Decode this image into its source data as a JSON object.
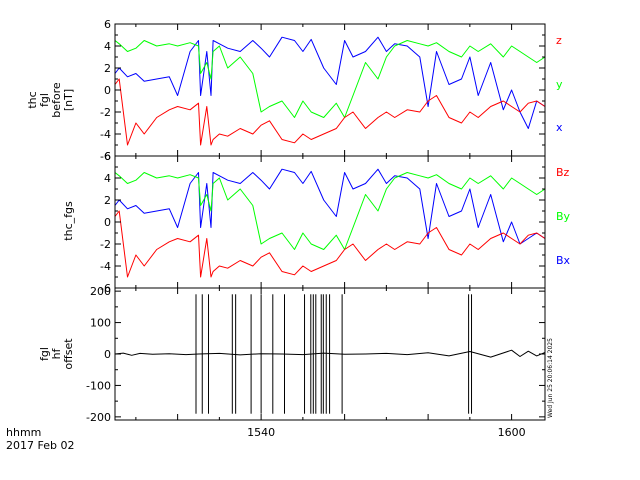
{
  "footer": {
    "time_unit": "hhmm",
    "date": "2017 Feb 02"
  },
  "stamp": "Wed Jun 25 20:06:14 2025",
  "chart_data": [
    {
      "type": "line",
      "panel": "top",
      "ylabel_lines": [
        "thc",
        "fgl",
        "before",
        "[nT]"
      ],
      "ylim": [
        -6,
        6
      ],
      "yticks": [
        -6,
        -4,
        -2,
        0,
        2,
        4,
        6
      ],
      "xlim": [
        1505,
        1608
      ],
      "series": [
        {
          "name": "x",
          "color": "#0000ff",
          "x": [
            1505,
            1506,
            1508,
            1510,
            1512,
            1515,
            1518,
            1520,
            1523,
            1525,
            1525.5,
            1527,
            1528,
            1528.5,
            1530,
            1532,
            1535,
            1538,
            1540,
            1542,
            1545,
            1548,
            1550,
            1552,
            1555,
            1558,
            1560,
            1562,
            1565,
            1568,
            1570,
            1572,
            1575,
            1578,
            1580,
            1582,
            1585,
            1588,
            1590,
            1592,
            1595,
            1598,
            1600,
            1602,
            1604,
            1606,
            1608
          ],
          "values": [
            1.5,
            2.0,
            1.2,
            1.5,
            0.8,
            1.0,
            1.2,
            -0.5,
            3.5,
            4.5,
            -0.5,
            3.5,
            -0.5,
            4.5,
            4.2,
            3.8,
            3.5,
            4.5,
            3.8,
            3.0,
            4.8,
            4.5,
            3.5,
            4.6,
            2.0,
            0.5,
            4.5,
            3.0,
            3.5,
            4.8,
            3.5,
            4.2,
            4.0,
            3.0,
            -1.5,
            3.5,
            0.5,
            1.0,
            3.0,
            -0.5,
            2.5,
            -1.8,
            0.0,
            -2.0,
            -3.5,
            -1.0,
            -1.5
          ]
        },
        {
          "name": "y",
          "color": "#00ff00",
          "x": [
            1505,
            1506,
            1508,
            1510,
            1512,
            1515,
            1518,
            1520,
            1523,
            1525,
            1525.5,
            1527,
            1528,
            1528.5,
            1530,
            1532,
            1535,
            1538,
            1540,
            1542,
            1545,
            1548,
            1550,
            1552,
            1555,
            1558,
            1560,
            1562,
            1565,
            1568,
            1570,
            1572,
            1575,
            1578,
            1580,
            1582,
            1585,
            1588,
            1590,
            1592,
            1595,
            1598,
            1600,
            1602,
            1604,
            1606,
            1608
          ],
          "values": [
            4.5,
            4.2,
            3.5,
            3.8,
            4.5,
            4.0,
            4.2,
            4.0,
            4.3,
            4.0,
            1.5,
            2.5,
            1.0,
            3.5,
            4.0,
            2.0,
            3.0,
            1.5,
            -2.0,
            -1.5,
            -1.0,
            -2.5,
            -1.0,
            -2.0,
            -2.5,
            -1.2,
            -2.5,
            -0.5,
            2.5,
            1.0,
            3.0,
            4.0,
            4.5,
            4.2,
            4.0,
            4.3,
            3.5,
            3.0,
            4.0,
            3.5,
            4.2,
            3.0,
            4.0,
            3.5,
            3.0,
            2.5,
            3.0
          ]
        },
        {
          "name": "z",
          "color": "#ff0000",
          "x": [
            1505,
            1506,
            1508,
            1510,
            1512,
            1515,
            1518,
            1520,
            1523,
            1525,
            1525.5,
            1527,
            1528,
            1528.5,
            1530,
            1532,
            1535,
            1538,
            1540,
            1542,
            1545,
            1548,
            1550,
            1552,
            1555,
            1558,
            1560,
            1562,
            1565,
            1568,
            1570,
            1572,
            1575,
            1578,
            1580,
            1582,
            1585,
            1588,
            1590,
            1592,
            1595,
            1598,
            1600,
            1602,
            1604,
            1606,
            1608
          ],
          "values": [
            0.5,
            1.0,
            -5.0,
            -3.0,
            -4.0,
            -2.5,
            -1.8,
            -1.5,
            -1.8,
            -1.2,
            -5.0,
            -1.5,
            -5.0,
            -4.5,
            -4.0,
            -4.2,
            -3.5,
            -4.0,
            -3.2,
            -2.8,
            -4.5,
            -4.8,
            -4.0,
            -4.5,
            -4.0,
            -3.5,
            -2.5,
            -2.0,
            -3.5,
            -2.5,
            -2.0,
            -2.5,
            -1.8,
            -2.0,
            -1.0,
            -0.5,
            -2.5,
            -3.0,
            -2.0,
            -2.5,
            -1.5,
            -1.0,
            -1.5,
            -2.0,
            -1.2,
            -1.0,
            -1.5
          ]
        }
      ]
    },
    {
      "type": "line",
      "panel": "middle",
      "ylabel_lines": [
        "thc_fgs"
      ],
      "ylim": [
        -6,
        6
      ],
      "yticks": [
        -6,
        -4,
        -2,
        0,
        2,
        4,
        6
      ],
      "xlim": [
        1505,
        1608
      ],
      "series": [
        {
          "name": "Bx",
          "color": "#0000ff",
          "x": [
            1505,
            1506,
            1508,
            1510,
            1512,
            1515,
            1518,
            1520,
            1523,
            1525,
            1525.5,
            1527,
            1528,
            1528.5,
            1530,
            1532,
            1535,
            1538,
            1540,
            1542,
            1545,
            1548,
            1550,
            1552,
            1555,
            1558,
            1560,
            1562,
            1565,
            1568,
            1570,
            1572,
            1575,
            1578,
            1580,
            1582,
            1585,
            1588,
            1590,
            1592,
            1595,
            1598,
            1600,
            1602,
            1604,
            1606,
            1608
          ],
          "values": [
            1.5,
            2.0,
            1.2,
            1.5,
            0.8,
            1.0,
            1.2,
            -0.5,
            3.5,
            4.5,
            -0.5,
            3.5,
            -0.5,
            4.5,
            4.2,
            3.8,
            3.5,
            4.5,
            3.8,
            3.0,
            4.8,
            4.5,
            3.5,
            4.6,
            2.0,
            0.5,
            4.5,
            3.0,
            3.5,
            4.8,
            3.5,
            4.2,
            4.0,
            3.0,
            -1.5,
            3.5,
            0.5,
            1.0,
            3.0,
            -0.5,
            2.5,
            -1.8,
            0.0,
            -2.0,
            -1.5,
            -1.0,
            -1.5
          ]
        },
        {
          "name": "By",
          "color": "#00ff00",
          "x": [
            1505,
            1506,
            1508,
            1510,
            1512,
            1515,
            1518,
            1520,
            1523,
            1525,
            1525.5,
            1527,
            1528,
            1528.5,
            1530,
            1532,
            1535,
            1538,
            1540,
            1542,
            1545,
            1548,
            1550,
            1552,
            1555,
            1558,
            1560,
            1562,
            1565,
            1568,
            1570,
            1572,
            1575,
            1578,
            1580,
            1582,
            1585,
            1588,
            1590,
            1592,
            1595,
            1598,
            1600,
            1602,
            1604,
            1606,
            1608
          ],
          "values": [
            4.5,
            4.2,
            3.5,
            3.8,
            4.5,
            4.0,
            4.2,
            4.0,
            4.3,
            4.0,
            1.5,
            2.5,
            1.0,
            3.5,
            4.0,
            2.0,
            3.0,
            1.5,
            -2.0,
            -1.5,
            -1.0,
            -2.5,
            -1.0,
            -2.0,
            -2.5,
            -1.2,
            -2.5,
            -0.5,
            2.5,
            1.0,
            3.0,
            4.0,
            4.5,
            4.2,
            4.0,
            4.3,
            3.5,
            3.0,
            4.0,
            3.5,
            4.2,
            3.0,
            4.0,
            3.5,
            3.0,
            2.5,
            3.0
          ]
        },
        {
          "name": "Bz",
          "color": "#ff0000",
          "x": [
            1505,
            1506,
            1508,
            1510,
            1512,
            1515,
            1518,
            1520,
            1523,
            1525,
            1525.5,
            1527,
            1528,
            1528.5,
            1530,
            1532,
            1535,
            1538,
            1540,
            1542,
            1545,
            1548,
            1550,
            1552,
            1555,
            1558,
            1560,
            1562,
            1565,
            1568,
            1570,
            1572,
            1575,
            1578,
            1580,
            1582,
            1585,
            1588,
            1590,
            1592,
            1595,
            1598,
            1600,
            1602,
            1604,
            1606,
            1608
          ],
          "values": [
            0.5,
            1.0,
            -5.0,
            -3.0,
            -4.0,
            -2.5,
            -1.8,
            -1.5,
            -1.8,
            -1.2,
            -5.0,
            -1.5,
            -5.0,
            -4.5,
            -4.0,
            -4.2,
            -3.5,
            -4.0,
            -3.2,
            -2.8,
            -4.5,
            -4.8,
            -4.0,
            -4.5,
            -4.0,
            -3.5,
            -2.5,
            -2.0,
            -3.5,
            -2.5,
            -2.0,
            -2.5,
            -1.8,
            -2.0,
            -1.0,
            -0.5,
            -2.5,
            -3.0,
            -2.0,
            -2.5,
            -1.5,
            -1.0,
            -1.5,
            -2.0,
            -1.2,
            -1.0,
            -1.5
          ]
        }
      ]
    },
    {
      "type": "line",
      "panel": "bottom",
      "ylabel_lines": [
        "fgl",
        "hf",
        "offset"
      ],
      "ylim": [
        -210,
        210
      ],
      "yticks": [
        -200,
        -100,
        0,
        100,
        200
      ],
      "xlim": [
        1505,
        1608
      ],
      "xticks": [
        1540,
        1600
      ],
      "xticklabels": [
        "1540",
        "1600"
      ],
      "series": [
        {
          "name": "",
          "color": "#000000",
          "x": [
            1505,
            1507,
            1509,
            1511,
            1514,
            1518,
            1522,
            1525,
            1530,
            1535,
            1540,
            1545,
            1550,
            1555,
            1560,
            1565,
            1570,
            1575,
            1580,
            1585,
            1590,
            1595,
            1600,
            1602,
            1604,
            1606,
            1608
          ],
          "values": [
            0,
            3,
            -4,
            2,
            -1,
            1,
            -2,
            0,
            2,
            -3,
            1,
            0,
            -2,
            3,
            -1,
            0,
            2,
            -2,
            4,
            -6,
            8,
            -10,
            12,
            -8,
            9,
            -6,
            5
          ]
        },
        {
          "name": "",
          "color": "#000000",
          "kind": "spikes",
          "x": [
            1524.4,
            1525.9,
            1527.4,
            1533.1,
            1533.9,
            1537.6,
            1540.0,
            1542.8,
            1545.6,
            1550.4,
            1551.9,
            1552.5,
            1553.1,
            1554.4,
            1554.9,
            1555.6,
            1556.4,
            1559.4,
            1589.7,
            1590.4
          ],
          "values": [
            -190,
            -190,
            -190,
            -190,
            -190,
            -190,
            -190,
            -190,
            -190,
            -190,
            -190,
            -190,
            -190,
            -190,
            -190,
            -190,
            -190,
            -190,
            -190,
            -190
          ]
        }
      ]
    }
  ]
}
